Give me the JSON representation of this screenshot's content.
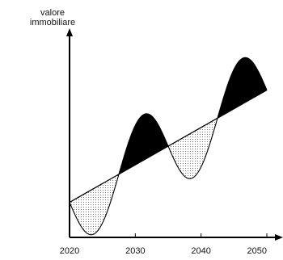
{
  "chart_data": {
    "type": "area",
    "ylabel_lines": [
      "valore",
      "immobiliare"
    ],
    "xlabel": "",
    "x_ticks": [
      "2020",
      "2030",
      "2040",
      "2050"
    ],
    "xlim": [
      2020,
      2050
    ],
    "trend_line": {
      "x": [
        2020,
        2050
      ],
      "y": [
        1.0,
        4.2
      ]
    },
    "oscillation": {
      "period_years": 15,
      "amplitude": 1.3,
      "start": 2020,
      "end": 2050
    },
    "fill_above_trend": "solid black",
    "fill_below_trend": "dotted grey"
  }
}
